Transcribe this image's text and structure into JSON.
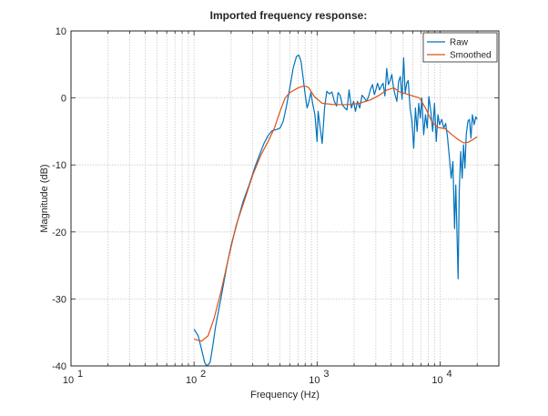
{
  "chart_data": {
    "type": "line",
    "title": "Imported frequency response:",
    "xlabel": "Frequency (Hz)",
    "ylabel": "Magnitude (dB)",
    "xscale": "log",
    "xlim": [
      10,
      30000
    ],
    "ylim": [
      -40,
      10
    ],
    "grid": true,
    "legend_position": "top-right",
    "x_ticks": [
      {
        "value": 10,
        "base": "10",
        "exp": "1"
      },
      {
        "value": 100,
        "base": "10",
        "exp": "2"
      },
      {
        "value": 1000,
        "base": "10",
        "exp": "3"
      },
      {
        "value": 10000,
        "base": "10",
        "exp": "4"
      }
    ],
    "y_ticks": [
      {
        "value": 10,
        "label": "10"
      },
      {
        "value": 0,
        "label": "0"
      },
      {
        "value": -10,
        "label": "-10"
      },
      {
        "value": -20,
        "label": "-20"
      },
      {
        "value": -30,
        "label": "-30"
      },
      {
        "value": -40,
        "label": "-40"
      }
    ],
    "series": [
      {
        "name": "Raw",
        "color": "#0072bd",
        "points": [
          [
            100,
            -34.5
          ],
          [
            108,
            -35.5
          ],
          [
            115,
            -37.5
          ],
          [
            122,
            -39.5
          ],
          [
            127,
            -40
          ],
          [
            135,
            -39.5
          ],
          [
            142,
            -37
          ],
          [
            150,
            -34
          ],
          [
            165,
            -30
          ],
          [
            185,
            -25
          ],
          [
            200,
            -22
          ],
          [
            225,
            -18.5
          ],
          [
            250,
            -15.5
          ],
          [
            280,
            -13
          ],
          [
            310,
            -10.5
          ],
          [
            340,
            -8.5
          ],
          [
            370,
            -6.8
          ],
          [
            400,
            -5.6
          ],
          [
            430,
            -4.9
          ],
          [
            470,
            -4.7
          ],
          [
            500,
            -4.5
          ],
          [
            530,
            -3.5
          ],
          [
            560,
            -1.5
          ],
          [
            600,
            1.5
          ],
          [
            640,
            4.5
          ],
          [
            680,
            6.2
          ],
          [
            710,
            6.4
          ],
          [
            740,
            5.5
          ],
          [
            770,
            3
          ],
          [
            800,
            0.5
          ],
          [
            830,
            -1.5
          ],
          [
            860,
            -0.5
          ],
          [
            890,
            0.8
          ],
          [
            920,
            -0.8
          ],
          [
            960,
            -2.5
          ],
          [
            1000,
            -6.5
          ],
          [
            1020,
            -2
          ],
          [
            1060,
            -4.5
          ],
          [
            1100,
            -6.8
          ],
          [
            1150,
            -1.5
          ],
          [
            1200,
            1
          ],
          [
            1260,
            0.6
          ],
          [
            1320,
            0.9
          ],
          [
            1380,
            -0.5
          ],
          [
            1440,
            -1.2
          ],
          [
            1480,
            0.8
          ],
          [
            1540,
            0.4
          ],
          [
            1600,
            -1
          ],
          [
            1680,
            -1.5
          ],
          [
            1750,
            -1.8
          ],
          [
            1820,
            1.2
          ],
          [
            1900,
            -1.5
          ],
          [
            1980,
            -0.5
          ],
          [
            2050,
            -2
          ],
          [
            2130,
            -0.5
          ],
          [
            2220,
            -1.5
          ],
          [
            2320,
            0.4
          ],
          [
            2420,
            0
          ],
          [
            2520,
            -0.5
          ],
          [
            2620,
            0.2
          ],
          [
            2720,
            1.3
          ],
          [
            2820,
            2
          ],
          [
            2920,
            0.5
          ],
          [
            3000,
            1.2
          ],
          [
            3100,
            2.2
          ],
          [
            3220,
            1.2
          ],
          [
            3330,
            1.8
          ],
          [
            3440,
            2.2
          ],
          [
            3560,
            0.3
          ],
          [
            3680,
            4.4
          ],
          [
            3800,
            2
          ],
          [
            3920,
            2.6
          ],
          [
            4050,
            3.5
          ],
          [
            4180,
            1.5
          ],
          [
            4300,
            0.5
          ],
          [
            4450,
            -0.5
          ],
          [
            4600,
            2.5
          ],
          [
            4750,
            3.2
          ],
          [
            4900,
            -0.2
          ],
          [
            5050,
            6
          ],
          [
            5200,
            0.7
          ],
          [
            5350,
            2.2
          ],
          [
            5500,
            2.6
          ],
          [
            5700,
            -1.5
          ],
          [
            5900,
            -3.5
          ],
          [
            6100,
            -7.5
          ],
          [
            6300,
            -1.5
          ],
          [
            6500,
            -5
          ],
          [
            6700,
            -0.8
          ],
          [
            6900,
            -3
          ],
          [
            7100,
            0
          ],
          [
            7350,
            -5.5
          ],
          [
            7600,
            -2.5
          ],
          [
            7850,
            -4.5
          ],
          [
            8100,
            0.2
          ],
          [
            8400,
            -2
          ],
          [
            8700,
            -5
          ],
          [
            9000,
            -0.8
          ],
          [
            9300,
            -6.5
          ],
          [
            9600,
            -2.5
          ],
          [
            9900,
            -4
          ],
          [
            10300,
            -3.2
          ],
          [
            10700,
            -4.5
          ],
          [
            11100,
            -3.8
          ],
          [
            11500,
            -6
          ],
          [
            11900,
            -9
          ],
          [
            12300,
            -12
          ],
          [
            12700,
            -9.5
          ],
          [
            13100,
            -19.5
          ],
          [
            13400,
            -13
          ],
          [
            13700,
            -20
          ],
          [
            14000,
            -27
          ],
          [
            14300,
            -14
          ],
          [
            14700,
            -8
          ],
          [
            15100,
            -12
          ],
          [
            15500,
            -7
          ],
          [
            15900,
            -10.5
          ],
          [
            16300,
            -5.5
          ],
          [
            16800,
            -3.5
          ],
          [
            17300,
            -3.2
          ],
          [
            17800,
            -6
          ],
          [
            18300,
            -2.5
          ],
          [
            18900,
            -4
          ],
          [
            19500,
            -2.8
          ],
          [
            20000,
            -3.2
          ]
        ]
      },
      {
        "name": "Smoothed",
        "color": "#d95319",
        "points": [
          [
            100,
            -36
          ],
          [
            115,
            -36.3
          ],
          [
            130,
            -35.5
          ],
          [
            145,
            -33
          ],
          [
            165,
            -29
          ],
          [
            190,
            -24
          ],
          [
            220,
            -19
          ],
          [
            260,
            -15
          ],
          [
            300,
            -11.5
          ],
          [
            350,
            -8.5
          ],
          [
            400,
            -6.5
          ],
          [
            450,
            -4.5
          ],
          [
            500,
            -2
          ],
          [
            550,
            0
          ],
          [
            600,
            0.8
          ],
          [
            700,
            1.5
          ],
          [
            780,
            1.8
          ],
          [
            850,
            1.6
          ],
          [
            950,
            0.2
          ],
          [
            1100,
            -0.8
          ],
          [
            1400,
            -1
          ],
          [
            1800,
            -1
          ],
          [
            2200,
            -0.8
          ],
          [
            2700,
            -0.3
          ],
          [
            3200,
            0.4
          ],
          [
            3700,
            1.2
          ],
          [
            4200,
            1.5
          ],
          [
            4700,
            0.9
          ],
          [
            5300,
            0.6
          ],
          [
            6000,
            0.3
          ],
          [
            6800,
            0
          ],
          [
            7600,
            -1.5
          ],
          [
            8600,
            -3.6
          ],
          [
            9600,
            -4.4
          ],
          [
            11000,
            -4.6
          ],
          [
            12500,
            -5.5
          ],
          [
            14000,
            -6.2
          ],
          [
            15500,
            -6.7
          ],
          [
            17000,
            -6.6
          ],
          [
            18500,
            -6.2
          ],
          [
            20000,
            -5.8
          ]
        ]
      }
    ]
  }
}
